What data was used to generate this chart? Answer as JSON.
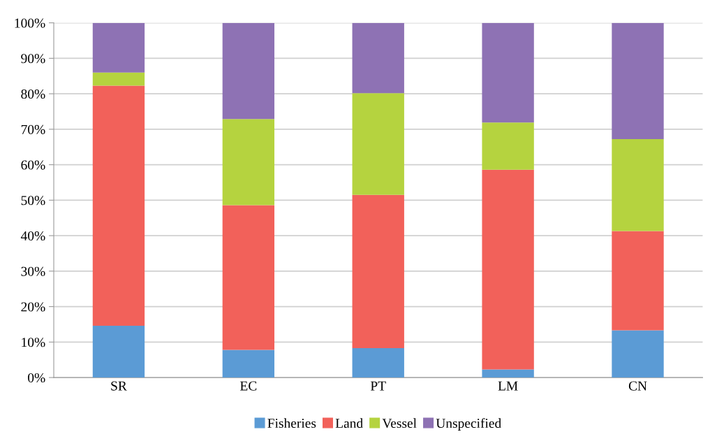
{
  "chart_data": {
    "type": "bar",
    "stacked": true,
    "categories": [
      "SR",
      "EC",
      "PT",
      "LM",
      "CN"
    ],
    "series": [
      {
        "name": "Fisheries",
        "color": "#5b9bd5",
        "values": [
          14.6,
          7.8,
          8.3,
          2.3,
          13.3
        ]
      },
      {
        "name": "Land",
        "color": "#f2615a",
        "values": [
          67.7,
          40.8,
          43.2,
          56.3,
          28.0
        ]
      },
      {
        "name": "Vessel",
        "color": "#b5d33f",
        "values": [
          3.7,
          24.3,
          28.7,
          13.3,
          25.9
        ]
      },
      {
        "name": "Unspecified",
        "color": "#8e72b4",
        "values": [
          14.0,
          27.1,
          19.8,
          28.1,
          32.8
        ]
      }
    ],
    "ylim": [
      0,
      100
    ],
    "yticks": [
      {
        "value": 0,
        "label": "0%"
      },
      {
        "value": 10,
        "label": "10%"
      },
      {
        "value": 20,
        "label": "20%"
      },
      {
        "value": 30,
        "label": "30%"
      },
      {
        "value": 40,
        "label": "40%"
      },
      {
        "value": 50,
        "label": "50%"
      },
      {
        "value": 60,
        "label": "60%"
      },
      {
        "value": 70,
        "label": "70%"
      },
      {
        "value": 80,
        "label": "80%"
      },
      {
        "value": 90,
        "label": "90%"
      },
      {
        "value": 100,
        "label": "100%"
      }
    ],
    "grid": "y",
    "legend": "bottom"
  }
}
